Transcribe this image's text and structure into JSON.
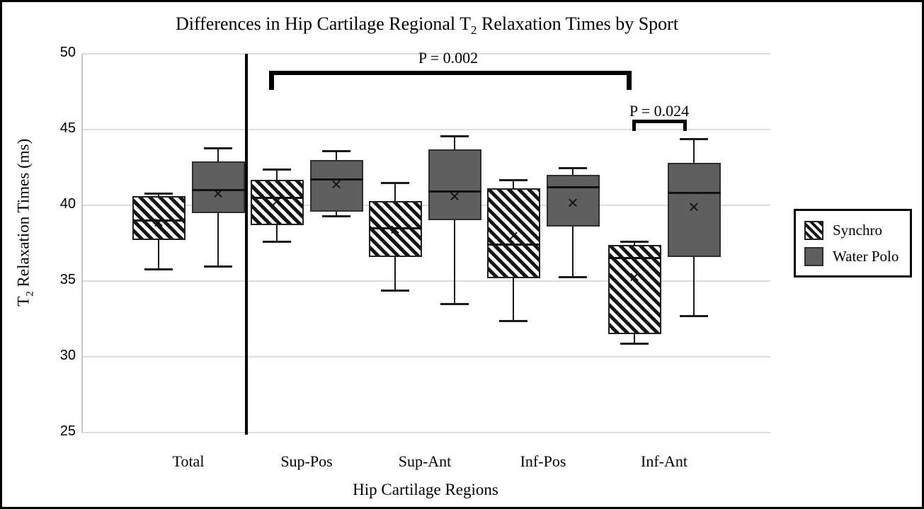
{
  "figure": {
    "title": {
      "pre": "Differences in Hip Cartilage Regional T",
      "sub": "2",
      "post": " Relaxation Times by Sport"
    },
    "y_axis": {
      "title_pre": "T",
      "title_sub": "2",
      "title_post": " Relaxation Times (ms)",
      "ticks": [
        50,
        45,
        40,
        35,
        30,
        25
      ]
    },
    "x_axis": {
      "title": "Hip Cartilage Regions"
    },
    "legend": {
      "items": [
        {
          "label": "Synchro",
          "style": "hatched"
        },
        {
          "label": "Water Polo",
          "style": "solid"
        }
      ]
    },
    "annotations": [
      {
        "label": "P = 0.002",
        "connects": [
          "Sup-Pos Synchro",
          "Inf-Ant Synchro"
        ]
      },
      {
        "label": "P = 0.024",
        "connects": [
          "Inf-Ant Synchro",
          "Inf-Ant Water Polo"
        ]
      }
    ]
  },
  "colors": {
    "water_polo_fill": "#5f5f5f",
    "box_border": "#1f1f1f",
    "hatch_stripe": "#151515",
    "gridline": "#dcdcdc",
    "divider": "#000000",
    "annotation": "#000000"
  },
  "chart_data": {
    "type": "boxplot",
    "title": "Differences in Hip Cartilage Regional T2 Relaxation Times by Sport",
    "xlabel": "Hip Cartilage Regions",
    "ylabel": "T2 Relaxation Times (ms)",
    "ylim": [
      25,
      50
    ],
    "yticks": [
      25,
      30,
      35,
      40,
      45,
      50
    ],
    "grid": "horizontal",
    "legend_position": "right",
    "categories": [
      "Total",
      "Sup-Pos",
      "Sup-Ant",
      "Inf-Pos",
      "Inf-Ant"
    ],
    "series": [
      {
        "name": "Synchro",
        "style": "hatched",
        "values": [
          {
            "low": 35.8,
            "q1": 37.7,
            "median": 39.0,
            "mean": 38.9,
            "q3": 40.6,
            "high": 40.8
          },
          {
            "low": 37.6,
            "q1": 38.7,
            "median": 40.5,
            "mean": 40.3,
            "q3": 41.7,
            "high": 42.4
          },
          {
            "low": 34.4,
            "q1": 36.6,
            "median": 38.5,
            "mean": 38.4,
            "q3": 40.3,
            "high": 41.5
          },
          {
            "low": 32.4,
            "q1": 35.2,
            "median": 37.4,
            "mean": 38.0,
            "q3": 41.1,
            "high": 41.7
          },
          {
            "low": 30.9,
            "q1": 31.5,
            "median": 36.5,
            "mean": 35.3,
            "q3": 37.4,
            "high": 37.6
          }
        ]
      },
      {
        "name": "Water Polo",
        "style": "solid",
        "values": [
          {
            "low": 36.0,
            "q1": 39.5,
            "median": 41.0,
            "mean": 40.8,
            "q3": 42.9,
            "high": 43.8
          },
          {
            "low": 39.3,
            "q1": 39.6,
            "median": 41.7,
            "mean": 41.4,
            "q3": 43.0,
            "high": 43.6
          },
          {
            "low": 33.5,
            "q1": 39.0,
            "median": 40.9,
            "mean": 40.6,
            "q3": 43.7,
            "high": 44.6
          },
          {
            "low": 35.3,
            "q1": 38.6,
            "median": 41.2,
            "mean": 40.2,
            "q3": 42.0,
            "high": 42.5
          },
          {
            "low": 32.7,
            "q1": 36.6,
            "median": 40.8,
            "mean": 39.9,
            "q3": 42.8,
            "high": 44.4
          }
        ]
      }
    ]
  }
}
